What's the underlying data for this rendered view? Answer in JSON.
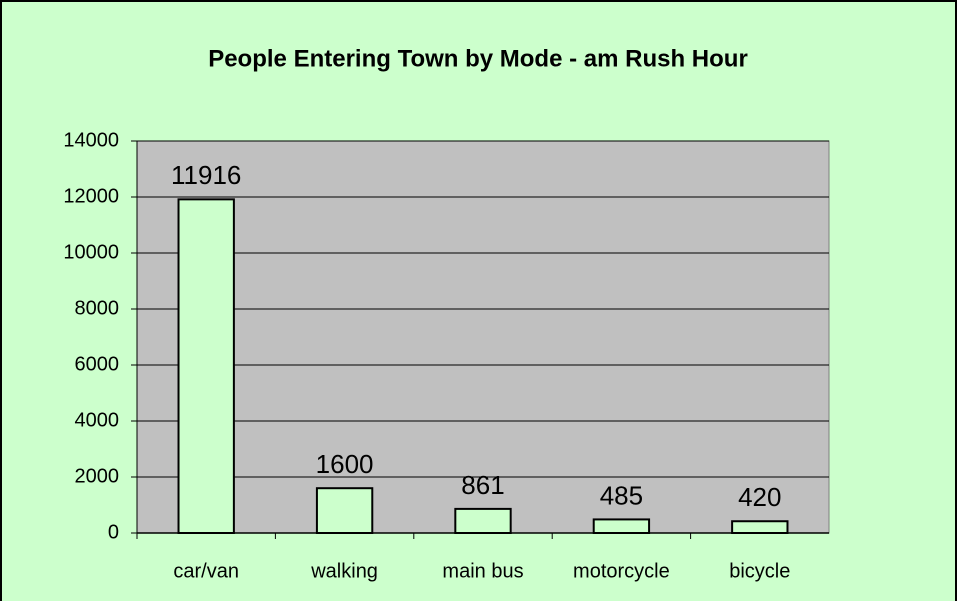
{
  "chart_data": {
    "type": "bar",
    "title": "People Entering Town by Mode - am Rush Hour",
    "categories": [
      "car/van",
      "walking",
      "main bus",
      "motorcycle",
      "bicycle"
    ],
    "values": [
      11916,
      1600,
      861,
      485,
      420
    ],
    "color": "#ccffcc",
    "ylim": [
      0,
      14000
    ],
    "yticks": [
      0,
      2000,
      4000,
      6000,
      8000,
      10000,
      12000,
      14000
    ],
    "grid": true
  }
}
